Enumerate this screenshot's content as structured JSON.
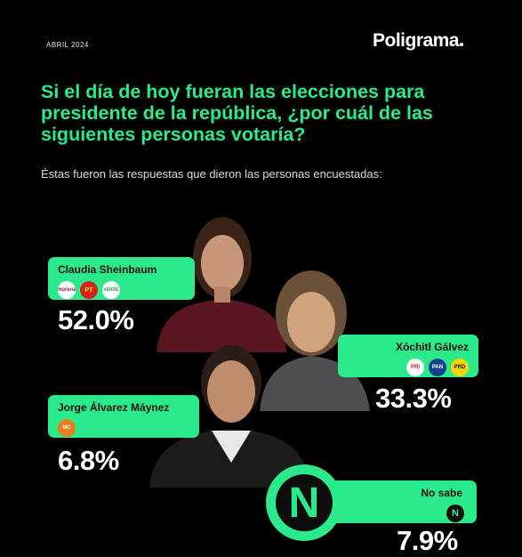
{
  "header": {
    "date": "ABRIL 2024",
    "brand": "Poligrama"
  },
  "question": "Si el día de hoy fueran las elecciones para presidente de la república, ¿por cuál de las siguientes personas votaría?",
  "subtitle": "Éstas fueron las respuestas que dieron las personas encuestadas:",
  "colors": {
    "accent": "#2aea8b",
    "background": "#000000",
    "text": "#ffffff"
  },
  "candidates": [
    {
      "name": "Claudia Sheinbaum",
      "percent": "52.0%",
      "parties": [
        "morena",
        "PT",
        "VERDE"
      ]
    },
    {
      "name": "Xóchitl Gálvez",
      "percent": "33.3%",
      "parties": [
        "PRI",
        "PAN",
        "PRD"
      ]
    },
    {
      "name": "Jorge Álvarez Máynez",
      "percent": "6.8%",
      "parties": [
        "MC"
      ]
    },
    {
      "name": "No sabe",
      "percent": "7.9%",
      "parties": [
        "N"
      ]
    }
  ],
  "chart_data": {
    "type": "bar",
    "categories": [
      "Claudia Sheinbaum",
      "Xóchitl Gálvez",
      "Jorge Álvarez Máynez",
      "No sabe"
    ],
    "values": [
      52.0,
      33.3,
      6.8,
      7.9
    ],
    "unit": "%"
  }
}
